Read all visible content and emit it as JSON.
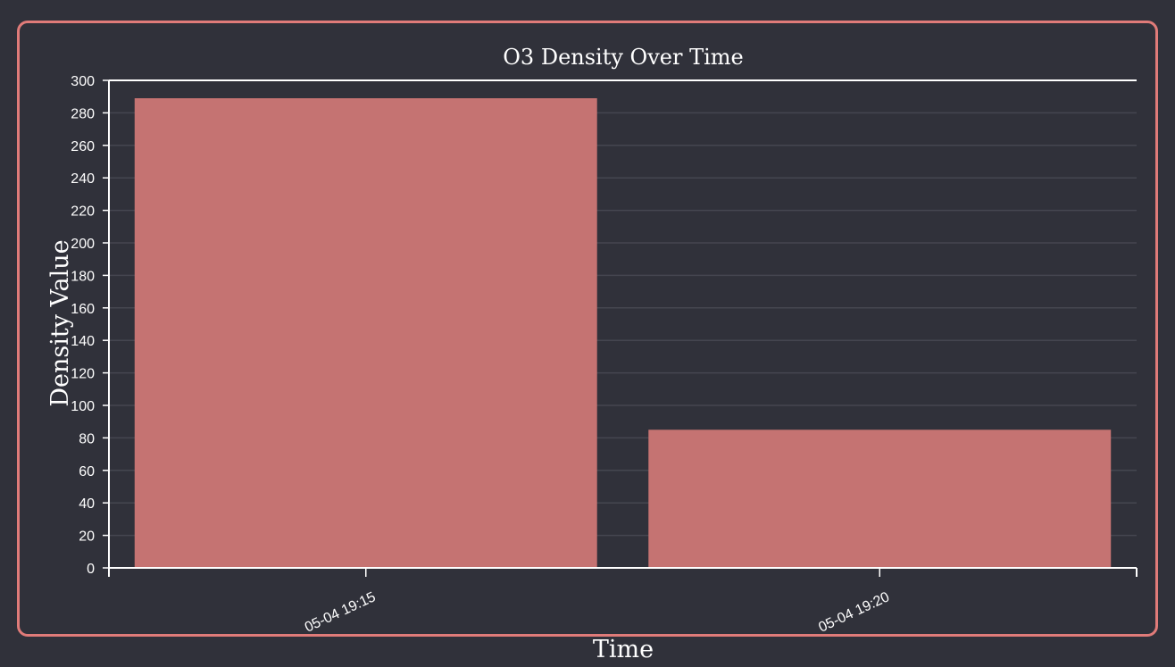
{
  "chart_data": {
    "type": "bar",
    "title": "O3 Density Over Time",
    "xlabel": "Time",
    "ylabel": "Density Value",
    "categories": [
      "05-04 19:15",
      "05-04 19:20"
    ],
    "values": [
      289,
      85
    ],
    "ylim": [
      0,
      300
    ],
    "yticks": [
      0,
      20,
      40,
      60,
      80,
      100,
      120,
      140,
      160,
      180,
      200,
      220,
      240,
      260,
      280,
      300
    ],
    "grid": true,
    "legend": "none"
  },
  "colors": {
    "background": "#30313a",
    "frame_border": "#e07b79",
    "bar_fill": "#c57372",
    "grid": "#454650",
    "axis": "#ffffff",
    "text": "#ffffff"
  }
}
